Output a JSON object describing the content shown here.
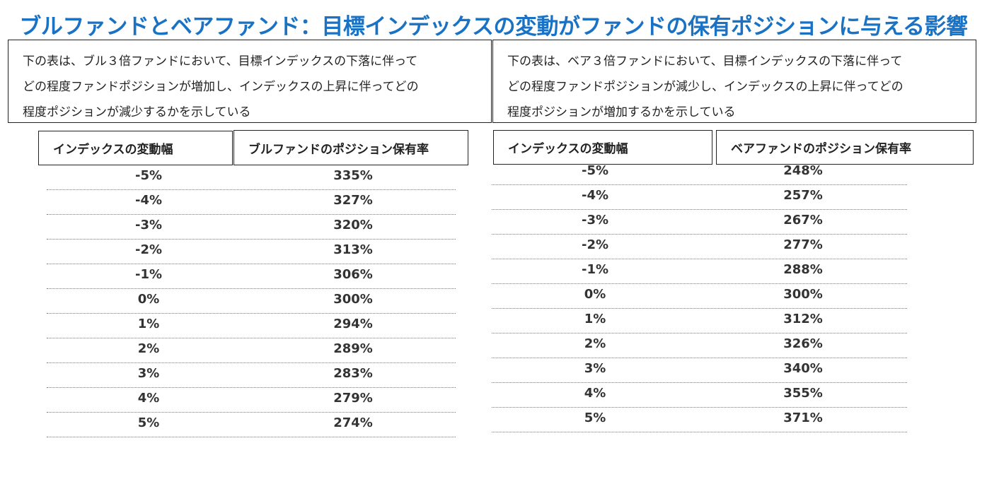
{
  "title": "ブルファンドとベアファンド：目標インデックスの変動がファンドの保有ポジションに与える影響",
  "bull": {
    "desc_lines": [
      "下の表は、ブル３倍ファンドにおいて、目標インデックスの下落に伴って",
      "どの程度ファンドポジションが増加し、インデックスの上昇に伴ってどの",
      "程度ポジションが減少するかを示している"
    ],
    "header_change": "インデックスの変動幅",
    "header_position": "ブルファンドのポジション保有率",
    "rows": [
      {
        "change": "-5%",
        "position": "335%"
      },
      {
        "change": "-4%",
        "position": "327%"
      },
      {
        "change": "-3%",
        "position": "320%"
      },
      {
        "change": "-2%",
        "position": "313%"
      },
      {
        "change": "-1%",
        "position": "306%"
      },
      {
        "change": "0%",
        "position": "300%"
      },
      {
        "change": "1%",
        "position": "294%"
      },
      {
        "change": "2%",
        "position": "289%"
      },
      {
        "change": "3%",
        "position": "283%"
      },
      {
        "change": "4%",
        "position": "279%"
      },
      {
        "change": "5%",
        "position": "274%"
      }
    ]
  },
  "bear": {
    "desc_lines": [
      "下の表は、ベア３倍ファンドにおいて、目標インデックスの下落に伴って",
      "どの程度ファンドポジションが減少し、インデックスの上昇に伴ってどの",
      "程度ポジションが増加するかを示している"
    ],
    "header_change": "インデックスの変動幅",
    "header_position": "ベアファンドのポジション保有率",
    "rows": [
      {
        "change": "-5%",
        "position": "248%"
      },
      {
        "change": "-4%",
        "position": "257%"
      },
      {
        "change": "-3%",
        "position": "267%"
      },
      {
        "change": "-2%",
        "position": "277%"
      },
      {
        "change": "-1%",
        "position": "288%"
      },
      {
        "change": "0%",
        "position": "300%"
      },
      {
        "change": "1%",
        "position": "312%"
      },
      {
        "change": "2%",
        "position": "326%"
      },
      {
        "change": "3%",
        "position": "340%"
      },
      {
        "change": "4%",
        "position": "355%"
      },
      {
        "change": "5%",
        "position": "371%"
      }
    ]
  }
}
